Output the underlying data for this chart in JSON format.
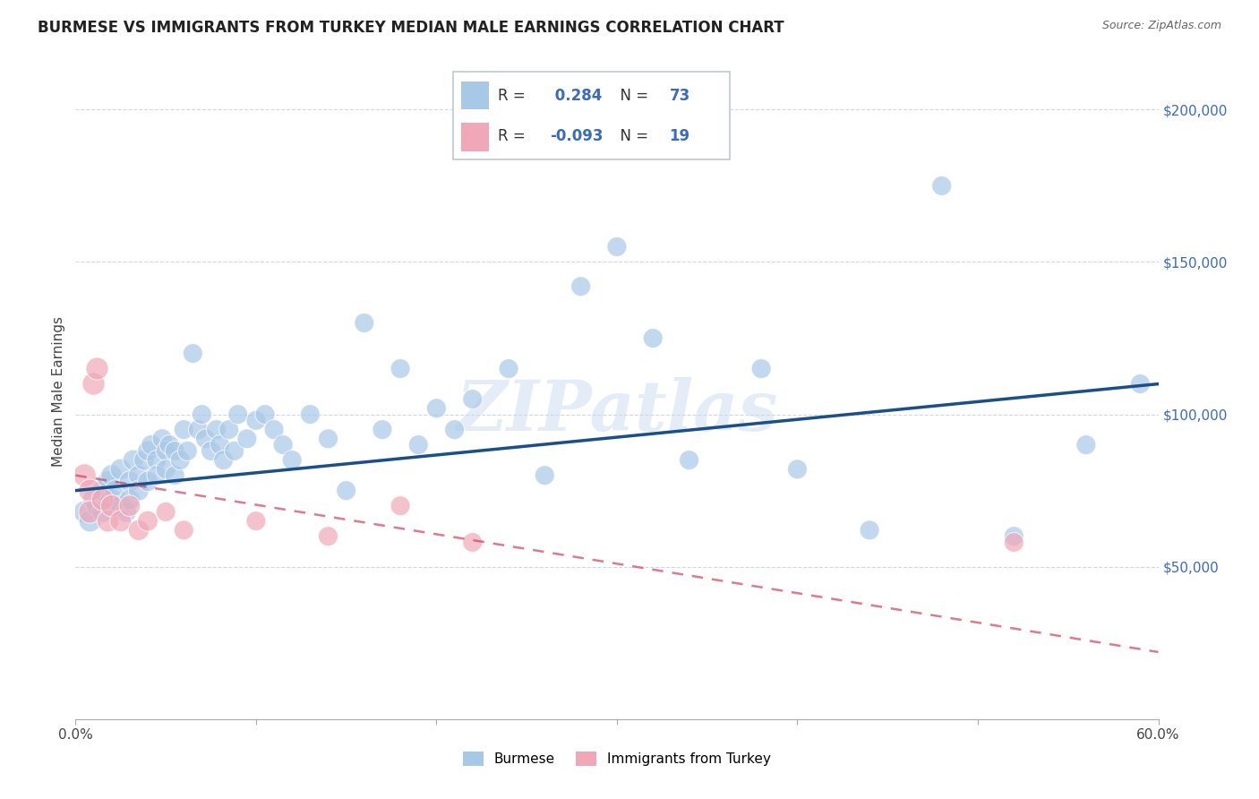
{
  "title": "BURMESE VS IMMIGRANTS FROM TURKEY MEDIAN MALE EARNINGS CORRELATION CHART",
  "source": "Source: ZipAtlas.com",
  "ylabel": "Median Male Earnings",
  "right_ytick_labels": [
    "$50,000",
    "$100,000",
    "$150,000",
    "$200,000"
  ],
  "right_ytick_values": [
    50000,
    100000,
    150000,
    200000
  ],
  "xlim": [
    0.0,
    0.6
  ],
  "ylim": [
    0,
    215000
  ],
  "R_blue": 0.284,
  "N_blue": 73,
  "R_pink": -0.093,
  "N_pink": 19,
  "blue_color": "#a8c8e8",
  "pink_color": "#f0a8b8",
  "blue_line_color": "#1a4f8a",
  "pink_line_color": "#d04060",
  "legend_blue_label": "Burmese",
  "legend_pink_label": "Immigrants from Turkey",
  "watermark": "ZIPatlas",
  "blue_line_y0": 75000,
  "blue_line_y1": 110000,
  "pink_line_y0": 80000,
  "pink_line_y1": 22000,
  "blue_x": [
    0.005,
    0.008,
    0.01,
    0.012,
    0.015,
    0.015,
    0.018,
    0.02,
    0.02,
    0.022,
    0.025,
    0.025,
    0.028,
    0.03,
    0.03,
    0.032,
    0.035,
    0.035,
    0.038,
    0.04,
    0.04,
    0.042,
    0.045,
    0.045,
    0.048,
    0.05,
    0.05,
    0.052,
    0.055,
    0.055,
    0.058,
    0.06,
    0.062,
    0.065,
    0.068,
    0.07,
    0.072,
    0.075,
    0.078,
    0.08,
    0.082,
    0.085,
    0.088,
    0.09,
    0.095,
    0.1,
    0.105,
    0.11,
    0.115,
    0.12,
    0.13,
    0.14,
    0.15,
    0.16,
    0.17,
    0.18,
    0.19,
    0.2,
    0.21,
    0.22,
    0.24,
    0.26,
    0.28,
    0.3,
    0.32,
    0.34,
    0.38,
    0.4,
    0.44,
    0.48,
    0.52,
    0.56,
    0.59
  ],
  "blue_y": [
    68000,
    65000,
    72000,
    70000,
    75000,
    68000,
    78000,
    80000,
    72000,
    75000,
    82000,
    70000,
    68000,
    78000,
    72000,
    85000,
    80000,
    75000,
    85000,
    88000,
    78000,
    90000,
    85000,
    80000,
    92000,
    88000,
    82000,
    90000,
    88000,
    80000,
    85000,
    95000,
    88000,
    120000,
    95000,
    100000,
    92000,
    88000,
    95000,
    90000,
    85000,
    95000,
    88000,
    100000,
    92000,
    98000,
    100000,
    95000,
    90000,
    85000,
    100000,
    92000,
    75000,
    130000,
    95000,
    115000,
    90000,
    102000,
    95000,
    105000,
    115000,
    80000,
    142000,
    155000,
    125000,
    85000,
    115000,
    82000,
    62000,
    175000,
    60000,
    90000,
    110000
  ],
  "pink_x": [
    0.005,
    0.008,
    0.008,
    0.01,
    0.012,
    0.015,
    0.018,
    0.02,
    0.025,
    0.03,
    0.035,
    0.04,
    0.05,
    0.06,
    0.1,
    0.14,
    0.18,
    0.22,
    0.52
  ],
  "pink_y": [
    80000,
    75000,
    68000,
    110000,
    115000,
    72000,
    65000,
    70000,
    65000,
    70000,
    62000,
    65000,
    68000,
    62000,
    65000,
    60000,
    70000,
    58000,
    58000
  ],
  "pink_size_large": [
    0.005,
    0.008,
    0.008
  ],
  "blue_size_large": [
    0.005
  ]
}
